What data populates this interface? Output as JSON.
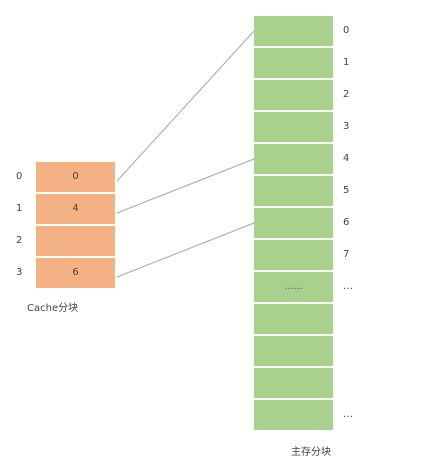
{
  "cache": {
    "caption": "Cache分块",
    "fill": "#f4b183",
    "index_labels": [
      "0",
      "1",
      "2",
      "3"
    ],
    "block_labels": [
      "0",
      "4",
      "",
      "6"
    ]
  },
  "memory": {
    "caption": "主存分块",
    "fill": "#a9d18e",
    "index_labels": [
      "0",
      "1",
      "2",
      "3",
      "4",
      "5",
      "6",
      "7",
      "…",
      "",
      "",
      "",
      "…"
    ],
    "block_labels": [
      "",
      "",
      "",
      "",
      "",
      "",
      "",
      "",
      "……",
      "",
      "",
      "",
      ""
    ]
  },
  "mappings": [
    {
      "cache_block": 0,
      "memory_block": 0
    },
    {
      "cache_block": 1,
      "memory_block": 4
    },
    {
      "cache_block": 3,
      "memory_block": 6
    }
  ],
  "line_color": "#a6a6a6"
}
